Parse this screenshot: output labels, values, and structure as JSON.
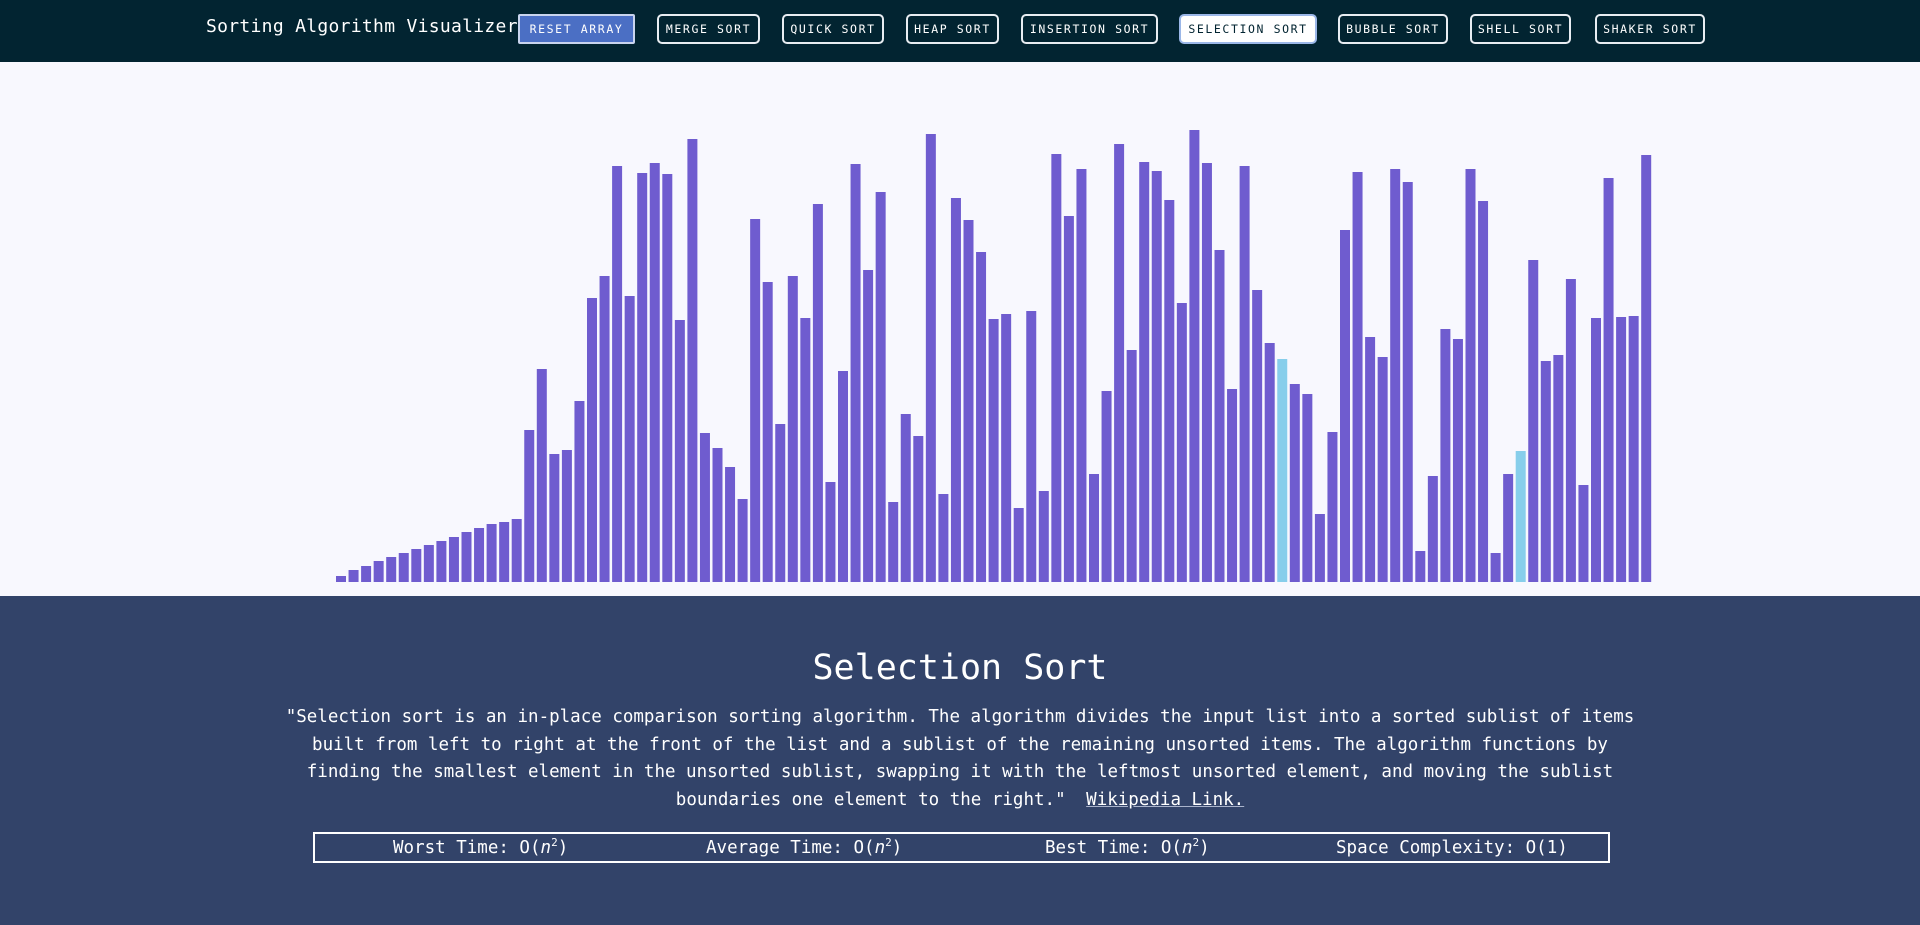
{
  "navbar": {
    "title": "Sorting Algorithm Visualizer",
    "buttons": [
      {
        "label": "RESET ARRAY",
        "state": "reset"
      },
      {
        "label": "MERGE SORT",
        "state": "normal"
      },
      {
        "label": "QUICK SORT",
        "state": "normal"
      },
      {
        "label": "HEAP SORT",
        "state": "normal"
      },
      {
        "label": "INSERTION SORT",
        "state": "normal"
      },
      {
        "label": "SELECTION SORT",
        "state": "active"
      },
      {
        "label": "BUBBLE SORT",
        "state": "normal"
      },
      {
        "label": "SHELL SORT",
        "state": "normal"
      },
      {
        "label": "SHAKER SORT",
        "state": "normal"
      }
    ]
  },
  "array": {
    "bar_color": "#6f5ccf",
    "highlight_color": "#87ceeb",
    "max_value": 455,
    "values": [
      6,
      12,
      16,
      21,
      25,
      29,
      33,
      37,
      41,
      45,
      50,
      54,
      58,
      60,
      63,
      152,
      213,
      128,
      132,
      181,
      284,
      306,
      416,
      286,
      409,
      419,
      408,
      262,
      443,
      149,
      134,
      115,
      83,
      363,
      300,
      158,
      306,
      264,
      378,
      100,
      211,
      418,
      312,
      390,
      80,
      168,
      146,
      448,
      88,
      384,
      362,
      330,
      263,
      268,
      74,
      271,
      91,
      428,
      366,
      413,
      108,
      191,
      438,
      232,
      420,
      411,
      382,
      279,
      452,
      419,
      332,
      193,
      416,
      292,
      239,
      223,
      198,
      188,
      68,
      150,
      352,
      410,
      245,
      225,
      413,
      400,
      31,
      106,
      253,
      243,
      413,
      381,
      29,
      108,
      131,
      322,
      221,
      227,
      303,
      97,
      264,
      404,
      265,
      266,
      427
    ]
  },
  "info": {
    "title": "Selection Sort",
    "description": "\"Selection sort is an in-place comparison sorting algorithm. The algorithm divides the input list into a sorted sublist of items built from left to right at the front of the list and a sublist of the remaining unsorted items. The algorithm functions by finding the smallest element in the unsorted sublist, swapping it with the leftmost unsorted element, and moving the sublist boundaries one element to the right.\"",
    "link_text": "Wikipedia Link.",
    "worst_label": "Worst Time: O(",
    "average_label": "Average Time: O(",
    "best_label": "Best Time: O(",
    "space_label": "Space Complexity: O(1)",
    "n_symbol": "n",
    "exponent": "2",
    "close_paren": ")"
  }
}
